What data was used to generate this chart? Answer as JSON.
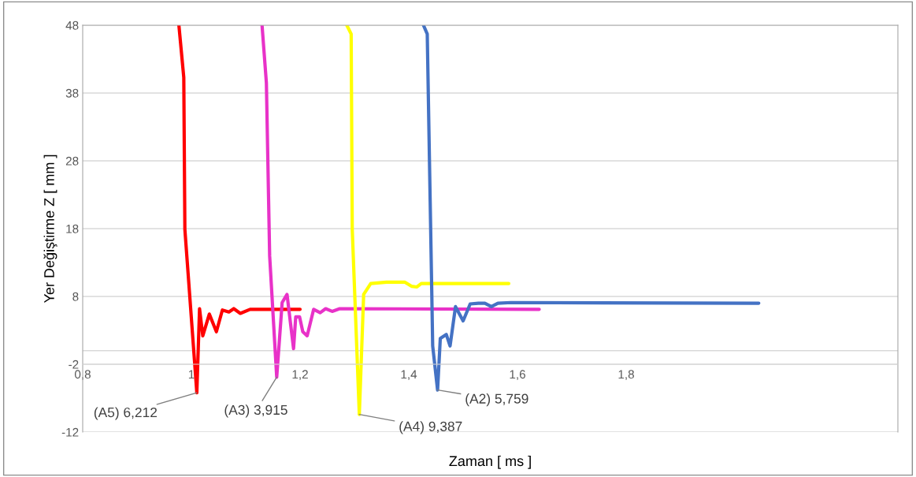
{
  "chart_data": {
    "type": "line",
    "xlabel": "Zaman [ ms ]",
    "ylabel": "Yer Değiştirme Z [ mm ]",
    "xlim": [
      0.8,
      2.3
    ],
    "xticks": [
      {
        "value": 0.8,
        "label": "0,8"
      },
      {
        "value": 1,
        "label": "1"
      },
      {
        "value": 1.2,
        "label": "1,2"
      },
      {
        "value": 1.4,
        "label": "1,4"
      },
      {
        "value": 1.6,
        "label": "1,6"
      },
      {
        "value": 1.8,
        "label": "1,8"
      }
    ],
    "ylim": [
      -12,
      48
    ],
    "yticks": [
      -12,
      -2,
      8,
      18,
      28,
      38,
      48
    ],
    "grid": "y",
    "marker": "none",
    "line_style": "solid",
    "ref_lines": [
      {
        "axis": "y",
        "value": 0,
        "color": "#d9d9d9"
      }
    ],
    "series": [
      {
        "color": "#ff0000",
        "x": [
          0.977,
          0.986,
          0.988,
          1.01,
          1.015,
          1.021,
          1.033,
          1.046,
          1.057,
          1.069,
          1.078,
          1.09,
          1.108,
          1.2
        ],
        "values": [
          48,
          40.3,
          17.9,
          -6.2,
          6.2,
          2.2,
          5.4,
          2.8,
          6.0,
          5.7,
          6.2,
          5.5,
          6.1,
          6.1
        ]
      },
      {
        "color": "#e832c8",
        "x": [
          1.13,
          1.138,
          1.144,
          1.157,
          1.167,
          1.176,
          1.188,
          1.192,
          1.199,
          1.205,
          1.213,
          1.225,
          1.237,
          1.247,
          1.259,
          1.273,
          1.64
        ],
        "values": [
          48,
          39.5,
          14.0,
          -3.9,
          7.1,
          8.3,
          0.3,
          5.0,
          5.0,
          2.8,
          2.2,
          6.1,
          5.6,
          6.2,
          5.8,
          6.2,
          6.1
        ]
      },
      {
        "color": "#ffff00",
        "x": [
          1.286,
          1.294,
          1.296,
          1.309,
          1.317,
          1.33,
          1.359,
          1.393,
          1.405,
          1.415,
          1.423,
          1.584
        ],
        "values": [
          48,
          46.7,
          17.9,
          -9.4,
          8.3,
          9.9,
          10.1,
          10.1,
          9.5,
          9.4,
          9.9,
          9.9
        ]
      },
      {
        "color": "#4472c4",
        "x": [
          1.427,
          1.434,
          1.442,
          1.444,
          1.453,
          1.458,
          1.469,
          1.476,
          1.486,
          1.5,
          1.513,
          1.528,
          1.54,
          1.552,
          1.564,
          1.588,
          2.044
        ],
        "values": [
          48,
          46.7,
          10.1,
          0.7,
          -5.8,
          1.8,
          2.4,
          0.7,
          6.5,
          4.4,
          6.9,
          7.0,
          7.0,
          6.5,
          7.0,
          7.1,
          7.0
        ]
      }
    ],
    "annotations": [
      {
        "text": "(A5) 6,212",
        "x": 1.01,
        "y": -6.2
      },
      {
        "text": "(A3) 3,915",
        "x": 1.157,
        "y": -3.9
      },
      {
        "text": "(A4) 9,387",
        "x": 1.309,
        "y": -9.4
      },
      {
        "text": "(A2) 5,759",
        "x": 1.453,
        "y": -5.8
      }
    ]
  }
}
